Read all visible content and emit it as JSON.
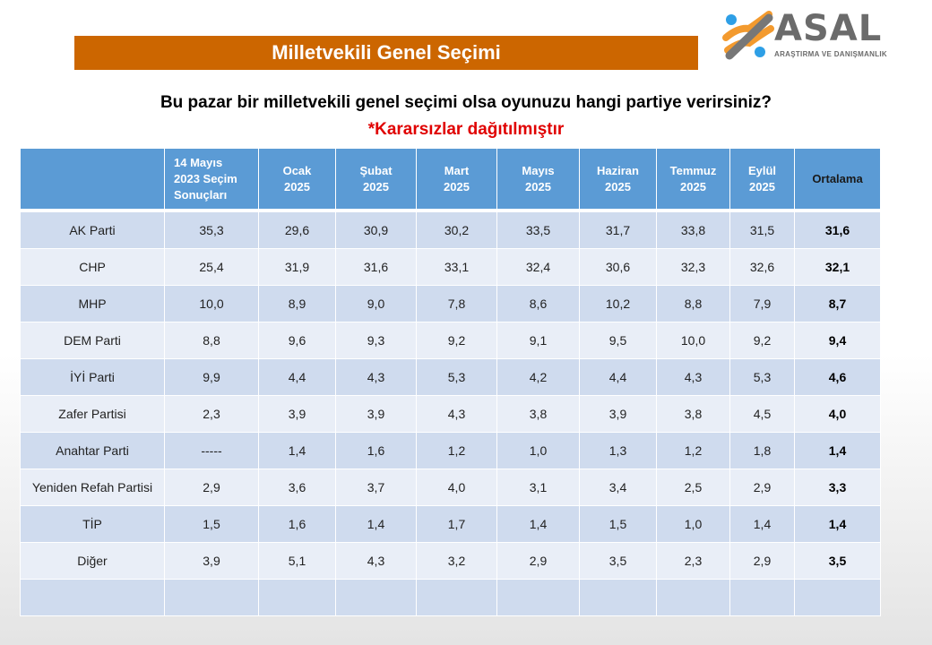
{
  "header": {
    "title": "Milletvekili Genel Seçimi"
  },
  "logo": {
    "name": "ASAL",
    "subtitle": "ARAŞTIRMA VE DANIŞMANLIK"
  },
  "question": "Bu pazar bir milletvekili genel seçimi olsa oyunuzu hangi partiye verirsiniz?",
  "note": "*Kararsızlar dağıtılmıştır",
  "colors": {
    "title_bar": "#cc6600",
    "header": "#5b9bd5",
    "row_odd": "#cfdbee",
    "row_even": "#e9eef7",
    "note": "#e00000"
  },
  "table": {
    "columns": [
      [
        "14 Mayıs",
        "2023 Seçim",
        "Sonuçları"
      ],
      [
        "Ocak",
        "2025"
      ],
      [
        "Şubat",
        "2025"
      ],
      [
        "Mart",
        "2025"
      ],
      [
        "Mayıs",
        "2025"
      ],
      [
        "Haziran",
        "2025"
      ],
      [
        "Temmuz",
        "2025"
      ],
      [
        "Eylül",
        "2025"
      ],
      [
        "Ortalama"
      ]
    ],
    "rows": [
      {
        "party": "AK Parti",
        "values": [
          "35,3",
          "29,6",
          "30,9",
          "30,2",
          "33,5",
          "31,7",
          "33,8",
          "31,5",
          "31,6"
        ]
      },
      {
        "party": "CHP",
        "values": [
          "25,4",
          "31,9",
          "31,6",
          "33,1",
          "32,4",
          "30,6",
          "32,3",
          "32,6",
          "32,1"
        ]
      },
      {
        "party": "MHP",
        "values": [
          "10,0",
          "8,9",
          "9,0",
          "7,8",
          "8,6",
          "10,2",
          "8,8",
          "7,9",
          "8,7"
        ]
      },
      {
        "party": "DEM Parti",
        "values": [
          "8,8",
          "9,6",
          "9,3",
          "9,2",
          "9,1",
          "9,5",
          "10,0",
          "9,2",
          "9,4"
        ]
      },
      {
        "party": "İYİ Parti",
        "values": [
          "9,9",
          "4,4",
          "4,3",
          "5,3",
          "4,2",
          "4,4",
          "4,3",
          "5,3",
          "4,6"
        ]
      },
      {
        "party": "Zafer Partisi",
        "values": [
          "2,3",
          "3,9",
          "3,9",
          "4,3",
          "3,8",
          "3,9",
          "3,8",
          "4,5",
          "4,0"
        ]
      },
      {
        "party": "Anahtar Parti",
        "values": [
          "-----",
          "1,4",
          "1,6",
          "1,2",
          "1,0",
          "1,3",
          "1,2",
          "1,8",
          "1,4"
        ]
      },
      {
        "party": "Yeniden Refah Partisi",
        "values": [
          "2,9",
          "3,6",
          "3,7",
          "4,0",
          "3,1",
          "3,4",
          "2,5",
          "2,9",
          "3,3"
        ]
      },
      {
        "party": "TİP",
        "values": [
          "1,5",
          "1,6",
          "1,4",
          "1,7",
          "1,4",
          "1,5",
          "1,0",
          "1,4",
          "1,4"
        ]
      },
      {
        "party": "Diğer",
        "values": [
          "3,9",
          "5,1",
          "4,3",
          "3,2",
          "2,9",
          "3,5",
          "2,3",
          "2,9",
          "3,5"
        ]
      },
      {
        "party": "",
        "values": [
          "",
          "",
          "",
          "",
          "",
          "",
          "",
          "",
          ""
        ]
      }
    ]
  }
}
